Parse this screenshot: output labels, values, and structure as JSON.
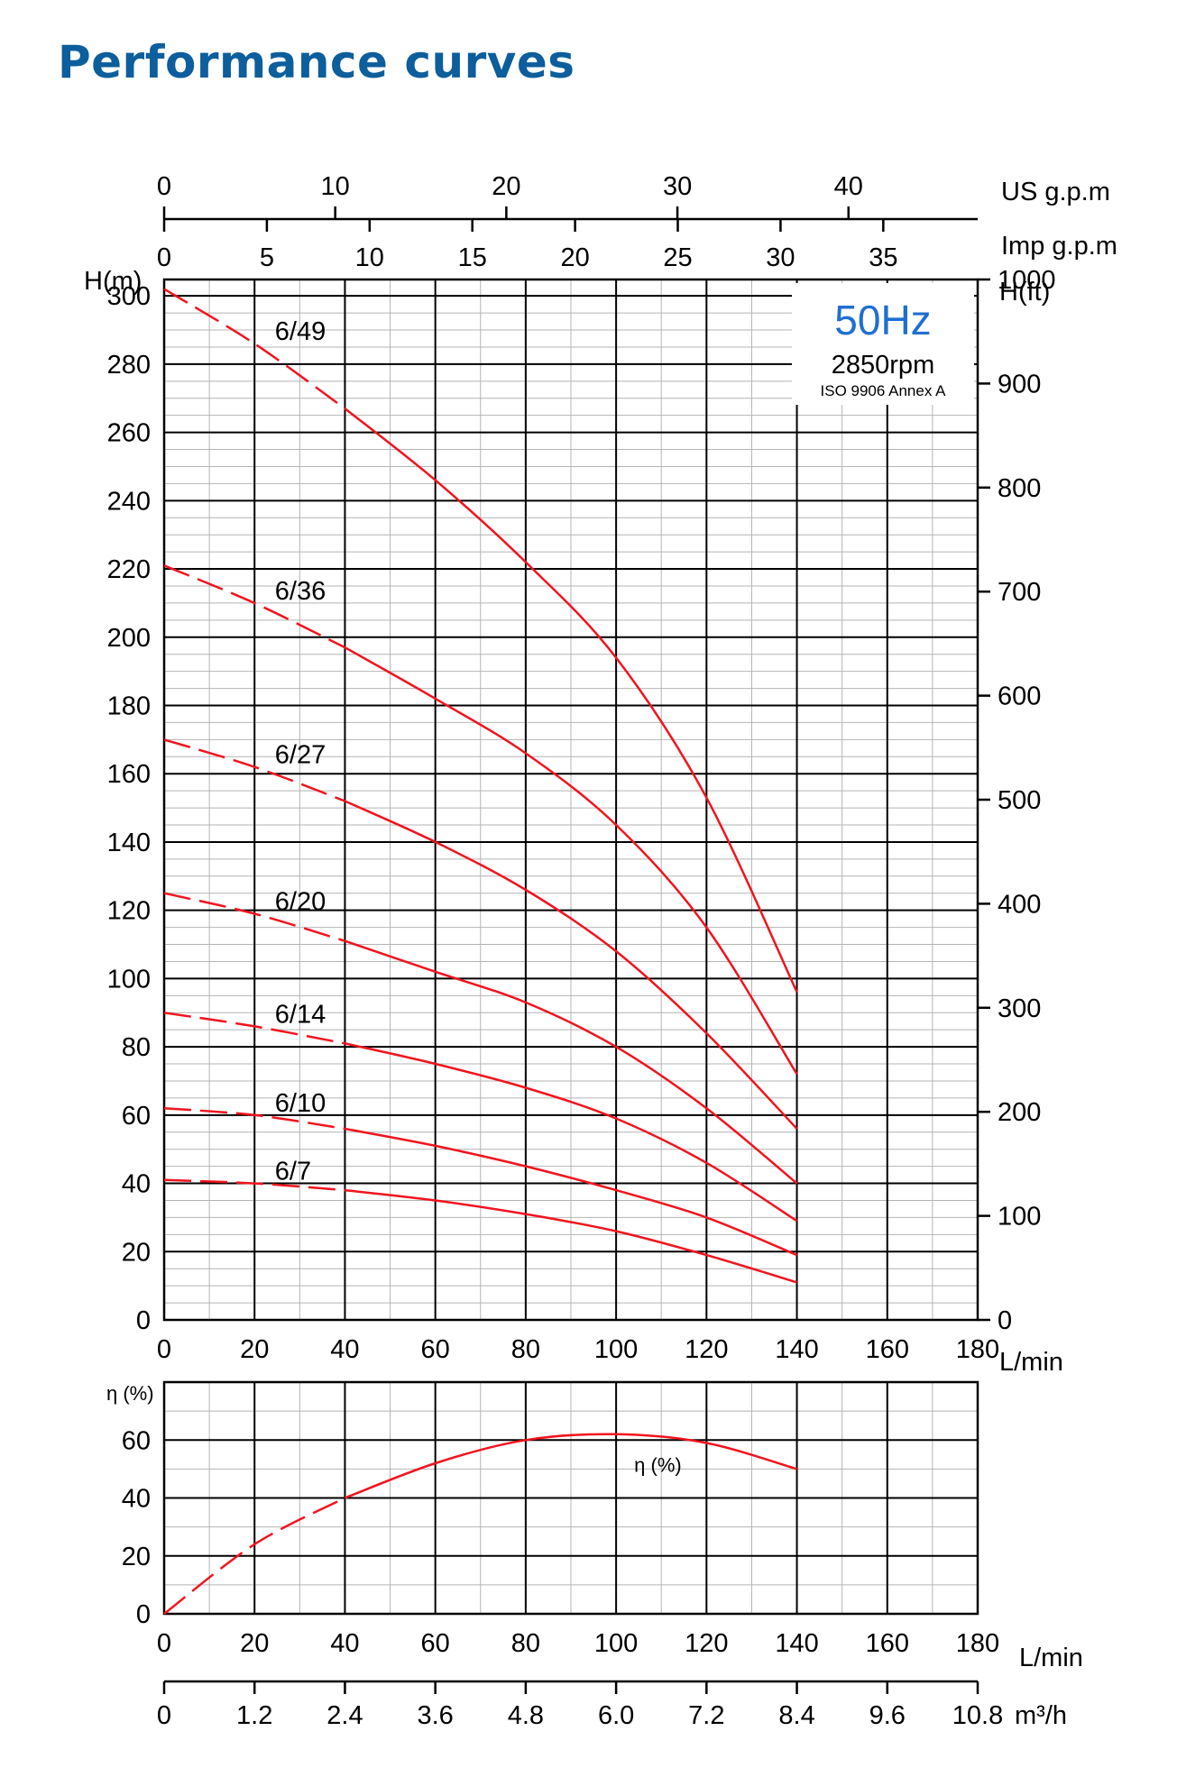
{
  "page": {
    "title": "Performance curves"
  },
  "colors": {
    "title": "#0c5e9c",
    "curve": "#f0141e",
    "badge": "#1f6fd1",
    "grid_major": "#000000",
    "grid_minor": "#b4b4b4"
  },
  "chart_data": [
    {
      "type": "line",
      "title": "",
      "info": {
        "frequency": "50Hz",
        "speed": "2850rpm",
        "standard": "ISO 9906 Annex A"
      },
      "xlabel": "L/min",
      "ylabel": "H(m)",
      "ylabel_right": "H(ft)",
      "xlim": [
        0,
        180
      ],
      "ylim": [
        0,
        304.8
      ],
      "grid": true,
      "x_ticks": [
        "0",
        "20",
        "40",
        "60",
        "80",
        "100",
        "120",
        "140",
        "160",
        "180"
      ],
      "y_ticks": [
        "0",
        "20",
        "40",
        "60",
        "80",
        "100",
        "120",
        "140",
        "160",
        "180",
        "200",
        "220",
        "240",
        "260",
        "280",
        "300"
      ],
      "y_right_ticks": [
        "0",
        "100",
        "200",
        "300",
        "400",
        "500",
        "600",
        "700",
        "800",
        "900",
        "1000"
      ],
      "top_axes": [
        {
          "label": "US g.p.m",
          "ticks": [
            "0",
            "10",
            "20",
            "30",
            "40"
          ]
        },
        {
          "label": "Imp g.p.m",
          "ticks": [
            "0",
            "5",
            "10",
            "15",
            "20",
            "25",
            "30",
            "35"
          ]
        }
      ],
      "dashed_until_x": [
        40,
        40,
        40,
        40,
        40,
        40,
        40
      ],
      "series": [
        {
          "name": "6/49",
          "x": [
            0,
            20,
            40,
            60,
            80,
            100,
            120,
            140
          ],
          "values": [
            302,
            286,
            267,
            246,
            222,
            194,
            153,
            96
          ]
        },
        {
          "name": "6/36",
          "x": [
            0,
            20,
            40,
            60,
            80,
            100,
            120,
            140
          ],
          "values": [
            221,
            210,
            197,
            182,
            166,
            145,
            115,
            72
          ]
        },
        {
          "name": "6/27",
          "x": [
            0,
            20,
            40,
            60,
            80,
            100,
            120,
            140
          ],
          "values": [
            170,
            162,
            152,
            140,
            126,
            108,
            84,
            56
          ]
        },
        {
          "name": "6/20",
          "x": [
            0,
            20,
            40,
            60,
            80,
            100,
            120,
            140
          ],
          "values": [
            125,
            119,
            111,
            102,
            93,
            80,
            62,
            40
          ]
        },
        {
          "name": "6/14",
          "x": [
            0,
            20,
            40,
            60,
            80,
            100,
            120,
            140
          ],
          "values": [
            90,
            86,
            81,
            75,
            68,
            59,
            46,
            29
          ]
        },
        {
          "name": "6/10",
          "x": [
            0,
            20,
            40,
            60,
            80,
            100,
            120,
            140
          ],
          "values": [
            62,
            60,
            56,
            51,
            45,
            38,
            30,
            19
          ]
        },
        {
          "name": "6/7",
          "x": [
            0,
            20,
            40,
            60,
            80,
            100,
            120,
            140
          ],
          "values": [
            41,
            40,
            38,
            35,
            31,
            26,
            19,
            11
          ]
        }
      ]
    },
    {
      "type": "line",
      "title": "",
      "xlabel": "L/min",
      "xlabel_secondary": "m³/h",
      "ylabel": "η (%)",
      "xlim": [
        0,
        180
      ],
      "ylim": [
        0,
        80
      ],
      "grid": true,
      "x_ticks": [
        "0",
        "20",
        "40",
        "60",
        "80",
        "100",
        "120",
        "140",
        "160",
        "180"
      ],
      "x_secondary_ticks": [
        "0",
        "1.2",
        "2.4",
        "3.6",
        "4.8",
        "6.0",
        "7.2",
        "8.4",
        "9.6",
        "10.8"
      ],
      "y_ticks": [
        "0",
        "20",
        "40",
        "60"
      ],
      "dashed_until_x": [
        40
      ],
      "series": [
        {
          "name": "η (%)",
          "x": [
            0,
            20,
            40,
            60,
            80,
            100,
            120,
            140
          ],
          "values": [
            0,
            24,
            40,
            52,
            60,
            62,
            59,
            50
          ]
        }
      ]
    }
  ]
}
